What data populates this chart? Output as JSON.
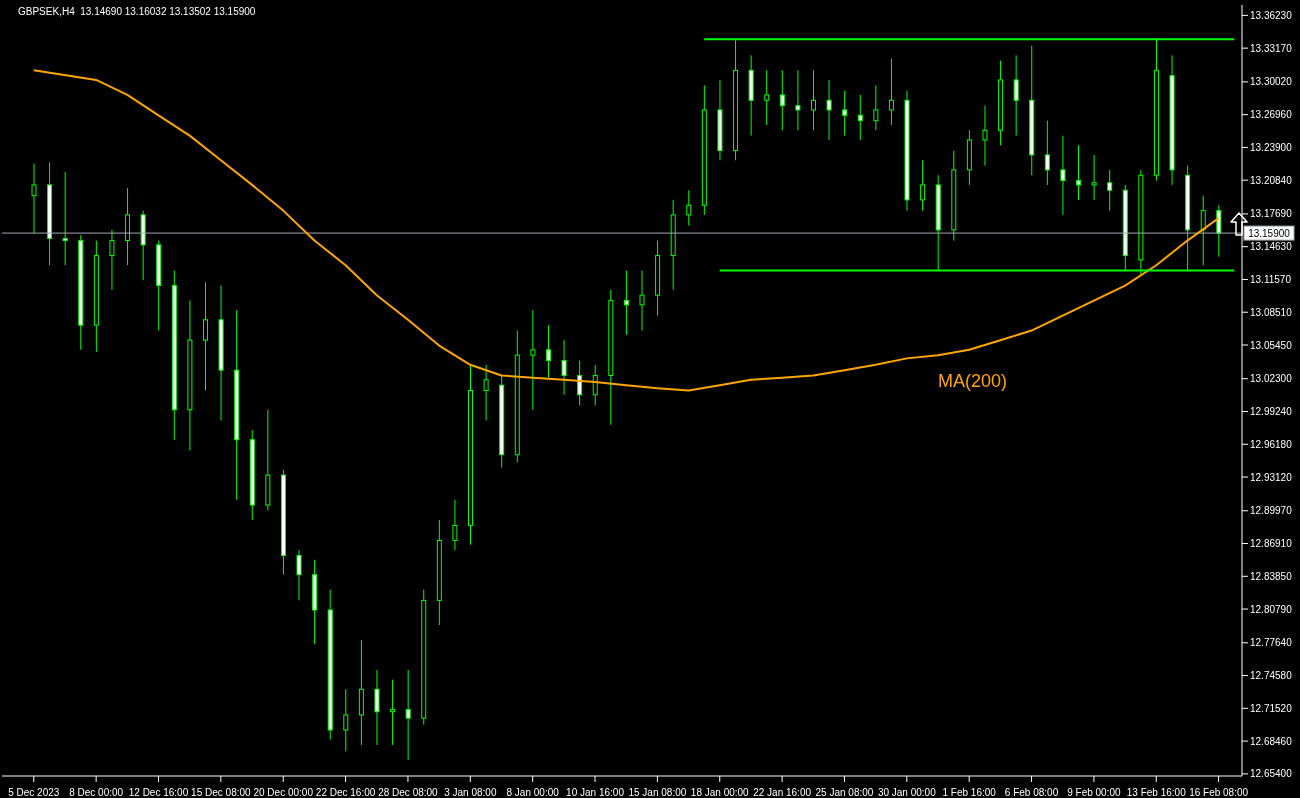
{
  "chart_data": {
    "type": "candlestick",
    "title": "GBPSEK,H4  13.14690 13.16032 13.13502 13.15900",
    "categories": [
      "5 Dec 2023",
      null,
      null,
      null,
      "8 Dec 00:00",
      null,
      null,
      null,
      "12 Dec 16:00",
      null,
      null,
      null,
      "15 Dec 08:00",
      null,
      null,
      null,
      "20 Dec 00:00",
      null,
      null,
      null,
      "22 Dec 16:00",
      null,
      null,
      null,
      "28 Dec 08:00",
      null,
      null,
      null,
      "3 Jan 08:00",
      null,
      null,
      null,
      "8 Jan 00:00",
      null,
      null,
      null,
      "10 Jan 16:00",
      null,
      null,
      null,
      "15 Jan 08:00",
      null,
      null,
      null,
      "18 Jan 00:00",
      null,
      null,
      null,
      "22 Jan 16:00",
      null,
      null,
      null,
      "25 Jan 08:00",
      null,
      null,
      null,
      "30 Jan 00:00",
      null,
      null,
      null,
      "1 Feb 16:00",
      null,
      null,
      null,
      "6 Feb 08:00",
      null,
      null,
      null,
      "9 Feb 00:00",
      null,
      null,
      null,
      "13 Feb 16:00",
      null,
      null,
      null,
      "16 Feb 08:00",
      null
    ],
    "ohlc": [
      [
        13.194,
        13.224,
        13.159,
        13.204
      ],
      [
        13.204,
        13.225,
        13.129,
        13.154
      ],
      [
        13.154,
        13.216,
        13.129,
        13.152
      ],
      [
        13.152,
        13.157,
        13.05,
        13.073
      ],
      [
        13.073,
        13.152,
        13.048,
        13.138
      ],
      [
        13.138,
        13.162,
        13.106,
        13.152
      ],
      [
        13.152,
        13.201,
        13.129,
        13.176
      ],
      [
        13.176,
        13.18,
        13.115,
        13.148
      ],
      [
        13.148,
        13.152,
        13.068,
        13.11
      ],
      [
        13.11,
        13.124,
        12.966,
        12.994
      ],
      [
        12.994,
        13.096,
        12.956,
        13.059
      ],
      [
        13.059,
        13.113,
        13.012,
        13.078
      ],
      [
        13.078,
        13.11,
        12.984,
        13.031
      ],
      [
        13.031,
        13.087,
        12.91,
        12.966
      ],
      [
        12.966,
        12.975,
        12.891,
        12.905
      ],
      [
        12.905,
        12.994,
        12.9,
        12.933
      ],
      [
        12.933,
        12.938,
        12.84,
        12.858
      ],
      [
        12.858,
        12.863,
        12.816,
        12.84
      ],
      [
        12.84,
        12.854,
        12.775,
        12.807
      ],
      [
        12.807,
        12.826,
        12.686,
        12.695
      ],
      [
        12.695,
        12.733,
        12.675,
        12.709
      ],
      [
        12.709,
        12.779,
        12.681,
        12.733
      ],
      [
        12.733,
        12.751,
        12.681,
        12.712
      ],
      [
        12.712,
        12.742,
        12.681,
        12.714
      ],
      [
        12.714,
        12.751,
        12.667,
        12.706
      ],
      [
        12.706,
        12.826,
        12.7,
        12.816
      ],
      [
        12.816,
        12.891,
        12.793,
        12.872
      ],
      [
        12.872,
        12.91,
        12.863,
        12.886
      ],
      [
        12.886,
        13.036,
        12.868,
        13.012
      ],
      [
        13.012,
        13.036,
        12.984,
        13.022
      ],
      [
        13.017,
        13.026,
        12.94,
        12.952
      ],
      [
        12.952,
        13.068,
        12.945,
        13.045
      ],
      [
        13.045,
        13.087,
        12.994,
        13.05
      ],
      [
        13.05,
        13.073,
        13.024,
        13.04
      ],
      [
        13.04,
        13.059,
        13.008,
        13.026
      ],
      [
        13.026,
        13.04,
        12.998,
        13.008
      ],
      [
        13.008,
        13.036,
        12.998,
        13.026
      ],
      [
        13.026,
        13.106,
        12.98,
        13.096
      ],
      [
        13.096,
        13.124,
        13.064,
        13.092
      ],
      [
        13.092,
        13.124,
        13.068,
        13.101
      ],
      [
        13.101,
        13.152,
        13.082,
        13.138
      ],
      [
        13.138,
        13.19,
        13.106,
        13.176
      ],
      [
        13.176,
        13.199,
        13.166,
        13.185
      ],
      [
        13.185,
        13.297,
        13.176,
        13.274
      ],
      [
        13.274,
        13.302,
        13.227,
        13.236
      ],
      [
        13.236,
        13.339,
        13.227,
        13.311
      ],
      [
        13.311,
        13.325,
        13.25,
        13.283
      ],
      [
        13.283,
        13.311,
        13.26,
        13.288
      ],
      [
        13.288,
        13.311,
        13.255,
        13.278
      ],
      [
        13.278,
        13.311,
        13.255,
        13.274
      ],
      [
        13.274,
        13.311,
        13.255,
        13.283
      ],
      [
        13.283,
        13.302,
        13.246,
        13.274
      ],
      [
        13.274,
        13.292,
        13.25,
        13.269
      ],
      [
        13.269,
        13.288,
        13.246,
        13.264
      ],
      [
        13.264,
        13.297,
        13.255,
        13.274
      ],
      [
        13.274,
        13.322,
        13.26,
        13.283
      ],
      [
        13.283,
        13.292,
        13.18,
        13.19
      ],
      [
        13.19,
        13.227,
        13.18,
        13.204
      ],
      [
        13.204,
        13.213,
        13.124,
        13.162
      ],
      [
        13.162,
        13.236,
        13.152,
        13.218
      ],
      [
        13.218,
        13.255,
        13.204,
        13.246
      ],
      [
        13.246,
        13.278,
        13.222,
        13.255
      ],
      [
        13.255,
        13.32,
        13.241,
        13.302
      ],
      [
        13.302,
        13.325,
        13.25,
        13.283
      ],
      [
        13.283,
        13.334,
        13.213,
        13.232
      ],
      [
        13.232,
        13.264,
        13.204,
        13.218
      ],
      [
        13.218,
        13.25,
        13.176,
        13.208
      ],
      [
        13.208,
        13.241,
        13.19,
        13.204
      ],
      [
        13.204,
        13.232,
        13.19,
        13.206
      ],
      [
        13.206,
        13.218,
        13.18,
        13.199
      ],
      [
        13.199,
        13.204,
        13.124,
        13.138
      ],
      [
        13.134,
        13.218,
        13.12,
        13.213
      ],
      [
        13.213,
        13.341,
        13.208,
        13.311
      ],
      [
        13.306,
        13.325,
        13.204,
        13.218
      ],
      [
        13.213,
        13.222,
        13.123,
        13.162
      ],
      [
        13.162,
        13.194,
        13.129,
        13.18
      ],
      [
        13.18,
        13.185,
        13.137,
        13.159
      ],
      null
    ],
    "color": "#00ff00",
    "series": [
      {
        "name": "MA(200)",
        "type": "line",
        "color": "#ffa500",
        "values": [
          13.311,
          null,
          null,
          null,
          13.302,
          null,
          13.288,
          null,
          13.269,
          null,
          13.25,
          null,
          13.227,
          null,
          13.204,
          null,
          13.18,
          null,
          13.152,
          null,
          13.129,
          null,
          13.101,
          null,
          13.078,
          null,
          13.054,
          null,
          13.036,
          null,
          13.026,
          null,
          13.024,
          null,
          13.022,
          null,
          13.02,
          null,
          13.017,
          null,
          13.014,
          null,
          13.012,
          null,
          13.017,
          null,
          13.022,
          null,
          13.024,
          null,
          13.026,
          null,
          13.031,
          null,
          13.036,
          null,
          13.042,
          null,
          13.045,
          null,
          13.05,
          null,
          13.059,
          null,
          13.068,
          null,
          13.082,
          null,
          13.096,
          null,
          13.11,
          null,
          13.129,
          null,
          13.152,
          null,
          13.173,
          null
        ]
      },
      {
        "type": "line",
        "color": "#00ff00",
        "values": [
          null,
          null,
          null,
          null,
          null,
          null,
          null,
          null,
          null,
          null,
          null,
          null,
          null,
          null,
          null,
          null,
          null,
          null,
          null,
          null,
          null,
          null,
          null,
          null,
          null,
          null,
          null,
          null,
          null,
          null,
          null,
          null,
          null,
          null,
          null,
          null,
          null,
          null,
          null,
          null,
          null,
          null,
          null,
          13.34,
          13.34,
          13.34,
          13.34,
          13.34,
          13.34,
          13.34,
          13.34,
          13.34,
          13.34,
          13.34,
          13.34,
          13.34,
          13.34,
          13.34,
          13.34,
          13.34,
          13.34,
          13.34,
          13.34,
          13.34,
          13.34,
          13.34,
          13.34,
          13.34,
          13.34,
          13.34,
          13.34,
          13.34,
          13.34,
          13.34,
          13.34,
          13.34,
          13.34,
          13.34
        ]
      },
      {
        "type": "line",
        "color": "#00ff00",
        "values": [
          null,
          null,
          null,
          null,
          null,
          null,
          null,
          null,
          null,
          null,
          null,
          null,
          null,
          null,
          null,
          null,
          null,
          null,
          null,
          null,
          null,
          null,
          null,
          null,
          null,
          null,
          null,
          null,
          null,
          null,
          null,
          null,
          null,
          null,
          null,
          null,
          null,
          null,
          null,
          null,
          null,
          null,
          null,
          null,
          13.124,
          13.124,
          13.124,
          13.124,
          13.124,
          13.124,
          13.124,
          13.124,
          13.124,
          13.124,
          13.124,
          13.124,
          13.124,
          13.124,
          13.124,
          13.124,
          13.124,
          13.124,
          13.124,
          13.124,
          13.124,
          13.124,
          13.124,
          13.124,
          13.124,
          13.124,
          13.124,
          13.124,
          13.124,
          13.124,
          13.124,
          13.124,
          13.124,
          13.124
        ]
      }
    ],
    "ylim": [
      12.652,
      13.372
    ],
    "yticks": [
      {
        "value": 12.654,
        "label": "12.65400"
      },
      {
        "value": 12.6846,
        "label": "12.68460"
      },
      {
        "value": 12.7152,
        "label": "12.71520"
      },
      {
        "value": 12.7458,
        "label": "12.74580"
      },
      {
        "value": 12.7764,
        "label": "12.77640"
      },
      {
        "value": 12.8079,
        "label": "12.80790"
      },
      {
        "value": 12.8385,
        "label": "12.83850"
      },
      {
        "value": 12.8691,
        "label": "12.86910"
      },
      {
        "value": 12.8997,
        "label": "12.89970"
      },
      {
        "value": 12.9312,
        "label": "12.93120"
      },
      {
        "value": 12.9618,
        "label": "12.96180"
      },
      {
        "value": 12.9924,
        "label": "12.99240"
      },
      {
        "value": 13.023,
        "label": "13.02300"
      },
      {
        "value": 13.0545,
        "label": "13.05450"
      },
      {
        "value": 13.0851,
        "label": "13.08510"
      },
      {
        "value": 13.1157,
        "label": "13.11570"
      },
      {
        "value": 13.1463,
        "label": "13.14630"
      },
      {
        "value": 13.1769,
        "label": "13.17690"
      },
      {
        "value": 13.2084,
        "label": "13.20840"
      },
      {
        "value": 13.239,
        "label": "13.23900"
      },
      {
        "value": 13.2696,
        "label": "13.26960"
      },
      {
        "value": 13.3002,
        "label": "13.30020"
      },
      {
        "value": 13.3317,
        "label": "13.33170"
      },
      {
        "value": 13.3623,
        "label": "13.36230"
      }
    ],
    "ref_lines": [
      {
        "axis": "y",
        "value": 13.159,
        "label": "13.15900",
        "color": "#a0a8b0"
      }
    ],
    "marker": "none",
    "grid": false,
    "legend": false
  }
}
